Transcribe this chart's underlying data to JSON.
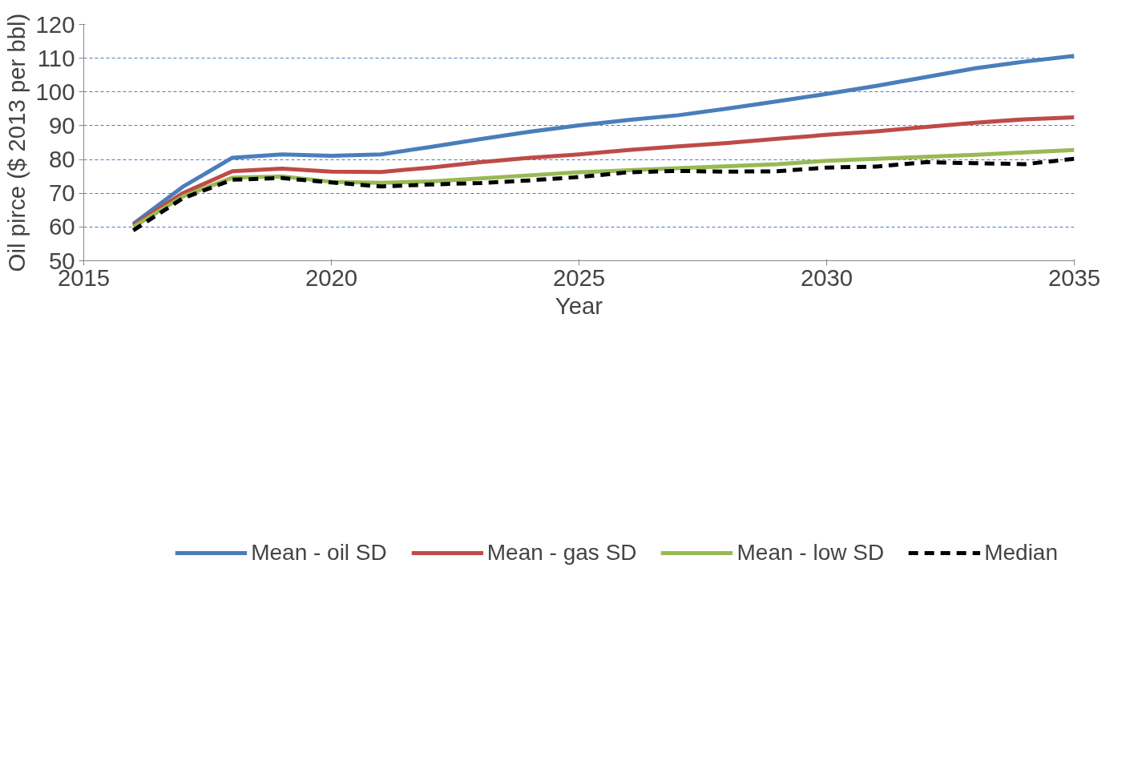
{
  "chart_data": {
    "type": "line",
    "xlabel": "Year",
    "ylabel": "Oil pirce ($ 2013 per bbl)",
    "x": [
      2016,
      2017,
      2018,
      2019,
      2020,
      2021,
      2022,
      2023,
      2024,
      2025,
      2026,
      2027,
      2028,
      2029,
      2030,
      2031,
      2032,
      2033,
      2034,
      2035
    ],
    "series": [
      {
        "name": "Mean - oil SD",
        "color": "#4a7ebb",
        "line_style": "solid",
        "values": [
          60.9,
          71.9,
          80.5,
          81.5,
          81.1,
          81.5,
          83.7,
          86,
          88.2,
          90.1,
          91.7,
          93.1,
          95.1,
          97.2,
          99.4,
          101.8,
          104.4,
          107,
          109,
          110.7
        ]
      },
      {
        "name": "Mean - gas SD",
        "color": "#be4b48",
        "line_style": "solid",
        "values": [
          60.5,
          70,
          76.5,
          77.3,
          76.4,
          76.3,
          77.6,
          79.2,
          80.5,
          81.5,
          82.8,
          83.9,
          84.9,
          86.1,
          87.3,
          88.3,
          89.6,
          90.9,
          91.9,
          92.5
        ]
      },
      {
        "name": "Mean - low SD",
        "color": "#98b954",
        "line_style": "solid",
        "values": [
          60,
          69,
          74.6,
          75,
          73.4,
          73.1,
          73.5,
          74.4,
          75.3,
          76.2,
          76.8,
          77.4,
          78,
          78.6,
          79.6,
          80.2,
          80.8,
          81.4,
          82.1,
          82.8
        ]
      },
      {
        "name": "Median",
        "color": "#000000",
        "line_style": "dashed",
        "values": [
          59,
          68.5,
          74,
          74.5,
          73.2,
          72,
          72.6,
          73,
          73.8,
          74.8,
          76.2,
          76.6,
          76.4,
          76.5,
          77.6,
          77.9,
          79.2,
          78.9,
          78.6,
          80.2
        ]
      }
    ],
    "xlim": [
      2015,
      2035
    ],
    "xticks": [
      2015,
      2020,
      2025,
      2030,
      2035
    ],
    "ylim": [
      50,
      120
    ],
    "yticks": [
      50,
      60,
      70,
      80,
      90,
      100,
      110,
      120
    ],
    "grid": "y",
    "legend": "bottom",
    "marker": "none"
  }
}
